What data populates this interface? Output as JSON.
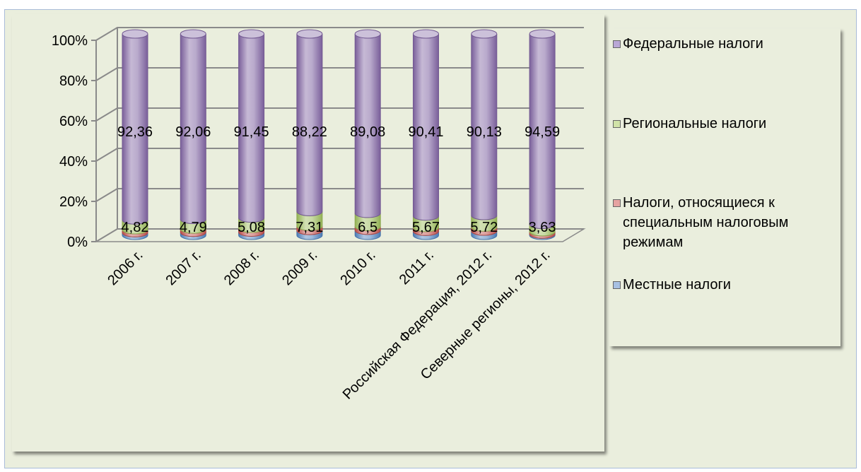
{
  "chart_data": {
    "type": "bar",
    "subtype": "100% stacked 3D cylinder",
    "categories": [
      "2006 г.",
      "2007 г.",
      "2008 г.",
      "2009 г.",
      "2010 г.",
      "2011 г.",
      "Российская Федерация, 2012 г.",
      "Северные регионы, 2012 г."
    ],
    "ylim": [
      0,
      100
    ],
    "y_ticks": [
      "0%",
      "20%",
      "40%",
      "60%",
      "80%",
      "100%"
    ],
    "grid": true,
    "legend_position": "right",
    "series": [
      {
        "name": "Местные налоги",
        "color": "#4f81bd",
        "values": [
          1.3,
          1.5,
          1.6,
          2.4,
          2.5,
          2.0,
          2.1,
          0.6
        ]
      },
      {
        "name": "Налоги, относящиеся к специальным налоговым режимам",
        "color": "#c0504d",
        "values": [
          1.5,
          1.6,
          1.9,
          2.1,
          1.9,
          1.9,
          2.0,
          1.2
        ]
      },
      {
        "name": "Региональные налоги",
        "color": "#9bbb59",
        "values": [
          4.82,
          4.79,
          5.08,
          7.31,
          6.5,
          5.67,
          5.72,
          3.63
        ]
      },
      {
        "name": "Федеральные налоги",
        "color": "#8064a2",
        "values": [
          92.36,
          92.06,
          91.45,
          88.22,
          89.08,
          90.41,
          90.13,
          94.59
        ]
      }
    ],
    "data_labels": {
      "Федеральные налоги": [
        "92,36",
        "92,06",
        "91,45",
        "88,22",
        "89,08",
        "90,41",
        "90,13",
        "94,59"
      ],
      "Региональные налоги": [
        "4,82",
        "4,79",
        "5,08",
        "7,31",
        "6,5",
        "5,67",
        "5,72",
        "3,63"
      ]
    }
  },
  "legend": {
    "items": [
      {
        "label": "Федеральные налоги",
        "color": "#8064a2"
      },
      {
        "label": "Региональные налоги",
        "color": "#9bbb59"
      },
      {
        "label": "Налоги, относящиеся к специальным налоговым режимам",
        "color": "#c0504d"
      },
      {
        "label": "Местные налоги",
        "color": "#4f81bd"
      }
    ]
  }
}
